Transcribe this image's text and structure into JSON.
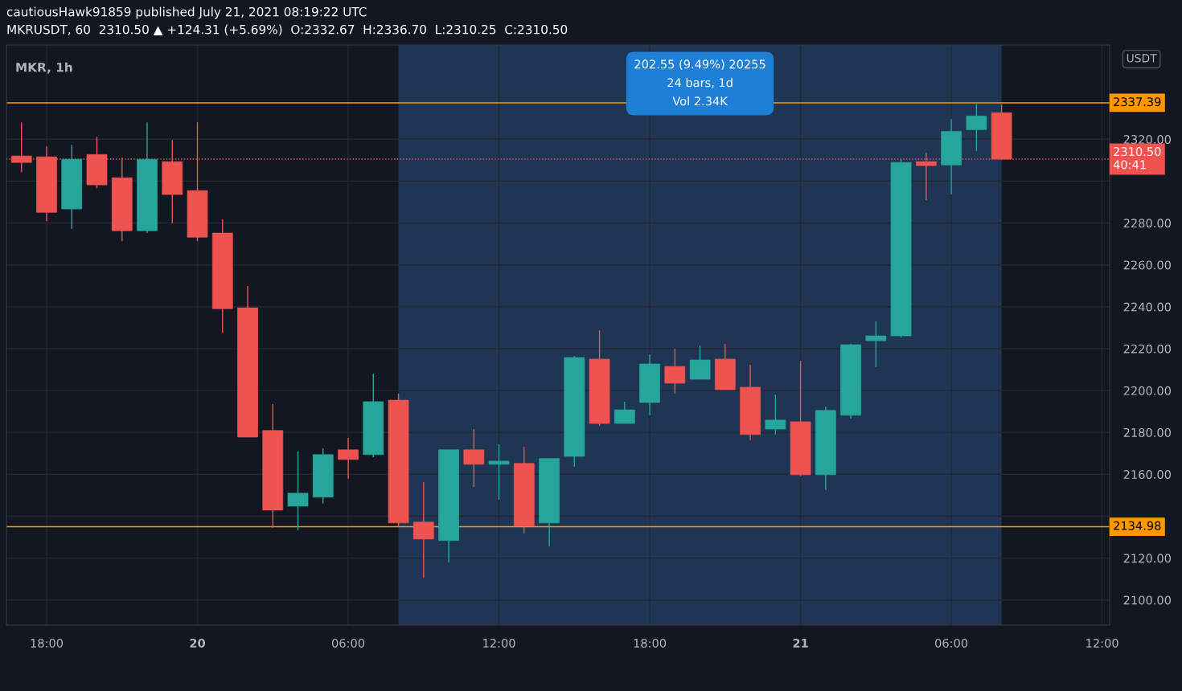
{
  "chart_data": {
    "type": "candlestick",
    "title": "MKRUSDT, 60  2310.50 ▲ +124.31 (+5.69%)  O:2332.67  H:2336.70  L:2310.25  C:2310.50",
    "subtitle": "MKR, 1h",
    "ylabel": "USDT",
    "x": [
      "2021-07-19T17:00",
      "2021-07-19T18:00",
      "2021-07-19T19:00",
      "2021-07-19T20:00",
      "2021-07-19T21:00",
      "2021-07-19T22:00",
      "2021-07-19T23:00",
      "2021-07-20T00:00",
      "2021-07-20T01:00",
      "2021-07-20T02:00",
      "2021-07-20T03:00",
      "2021-07-20T04:00",
      "2021-07-20T05:00",
      "2021-07-20T06:00",
      "2021-07-20T07:00",
      "2021-07-20T08:00",
      "2021-07-20T09:00",
      "2021-07-20T10:00",
      "2021-07-20T11:00",
      "2021-07-20T12:00",
      "2021-07-20T13:00",
      "2021-07-20T14:00",
      "2021-07-20T15:00",
      "2021-07-20T16:00",
      "2021-07-20T17:00",
      "2021-07-20T18:00",
      "2021-07-20T19:00",
      "2021-07-20T20:00",
      "2021-07-20T21:00",
      "2021-07-20T22:00",
      "2021-07-20T23:00",
      "2021-07-21T00:00",
      "2021-07-21T01:00",
      "2021-07-21T02:00",
      "2021-07-21T03:00",
      "2021-07-21T04:00",
      "2021-07-21T05:00",
      "2021-07-21T06:00",
      "2021-07-21T07:00",
      "2021-07-21T08:00"
    ],
    "ohlc": [
      [
        2312.0,
        2328.1,
        2304.3,
        2308.9
      ],
      [
        2311.6,
        2316.6,
        2280.9,
        2285.1
      ],
      [
        2286.7,
        2317.3,
        2277.1,
        2310.4
      ],
      [
        2312.7,
        2321.2,
        2296.6,
        2298.2
      ],
      [
        2301.6,
        2311.2,
        2271.3,
        2276.3
      ],
      [
        2276.3,
        2328.1,
        2275.2,
        2310.4
      ],
      [
        2309.3,
        2319.6,
        2279.8,
        2293.6
      ],
      [
        2295.5,
        2328.1,
        2271.3,
        2273.2
      ],
      [
        2275.2,
        2281.7,
        2227.6,
        2239.1
      ],
      [
        2239.5,
        2249.9,
        2177.8,
        2177.8
      ],
      [
        2180.9,
        2193.5,
        2134.5,
        2142.9
      ],
      [
        2144.8,
        2170.9,
        2133.3,
        2151.0
      ],
      [
        2149.1,
        2172.4,
        2146.0,
        2169.4
      ],
      [
        2171.7,
        2177.4,
        2157.9,
        2167.1
      ],
      [
        2169.4,
        2208.1,
        2168.2,
        2194.7
      ],
      [
        2195.4,
        2198.5,
        2134.9,
        2136.8
      ],
      [
        2137.2,
        2156.3,
        2110.7,
        2129.1
      ],
      [
        2128.4,
        2171.7,
        2118.0,
        2171.7
      ],
      [
        2171.7,
        2181.6,
        2154.0,
        2164.8
      ],
      [
        2164.8,
        2174.4,
        2147.9,
        2166.3
      ],
      [
        2165.2,
        2173.2,
        2131.8,
        2135.3
      ],
      [
        2136.8,
        2167.5,
        2125.7,
        2167.5
      ],
      [
        2168.6,
        2216.5,
        2163.6,
        2215.8
      ],
      [
        2215.0,
        2228.8,
        2183.2,
        2184.3
      ],
      [
        2184.3,
        2194.7,
        2184.3,
        2190.8
      ],
      [
        2194.3,
        2217.3,
        2188.2,
        2212.7
      ],
      [
        2211.5,
        2220.0,
        2198.5,
        2203.5
      ],
      [
        2205.4,
        2221.5,
        2205.4,
        2214.6
      ],
      [
        2215.0,
        2222.3,
        2200.4,
        2200.4
      ],
      [
        2201.6,
        2212.3,
        2176.3,
        2179.0
      ],
      [
        2181.6,
        2198.1,
        2179.0,
        2185.9
      ],
      [
        2185.1,
        2214.2,
        2159.0,
        2159.8
      ],
      [
        2159.8,
        2192.4,
        2152.5,
        2190.5
      ],
      [
        2188.2,
        2222.3,
        2186.6,
        2221.9
      ],
      [
        2223.8,
        2233.0,
        2211.2,
        2226.1
      ],
      [
        2226.1,
        2310.4,
        2225.3,
        2308.9
      ],
      [
        2309.3,
        2313.5,
        2290.9,
        2307.4
      ],
      [
        2307.7,
        2329.6,
        2293.6,
        2323.8
      ],
      [
        2324.6,
        2336.9,
        2314.3,
        2331.1
      ],
      [
        2332.67,
        2336.7,
        2310.25,
        2310.5
      ]
    ],
    "colors": [
      "#ef5350",
      "#ef5350",
      "#26a69a",
      "#ef5350",
      "#ef5350",
      "#26a69a",
      "#ef5350",
      "#ef5350",
      "#ef5350",
      "#ef5350",
      "#ef5350",
      "#26a69a",
      "#26a69a",
      "#ef5350",
      "#26a69a",
      "#ef5350",
      "#ef5350",
      "#26a69a",
      "#ef5350",
      "#26a69a",
      "#ef5350",
      "#26a69a",
      "#26a69a",
      "#ef5350",
      "#26a69a",
      "#26a69a",
      "#ef5350",
      "#26a69a",
      "#ef5350",
      "#ef5350",
      "#26a69a",
      "#ef5350",
      "#26a69a",
      "#26a69a",
      "#26a69a",
      "#26a69a",
      "#ef5350",
      "#26a69a",
      "#26a69a",
      "#ef5350"
    ],
    "xlim": [
      "2021-07-19T16:24",
      "2021-07-21T12:18"
    ],
    "xticks": [
      {
        "value": "2021-07-19T18:00",
        "label": "18:00"
      },
      {
        "value": "2021-07-20T00:00",
        "label": "20"
      },
      {
        "value": "2021-07-20T06:00",
        "label": "06:00"
      },
      {
        "value": "2021-07-20T12:00",
        "label": "12:00"
      },
      {
        "value": "2021-07-20T18:00",
        "label": "18:00"
      },
      {
        "value": "2021-07-21T00:00",
        "label": "21"
      },
      {
        "value": "2021-07-21T06:00",
        "label": "06:00"
      },
      {
        "value": "2021-07-21T12:00",
        "label": "12:00"
      }
    ],
    "ylim": [
      2088,
      2365
    ],
    "yticks": [
      {
        "value": 2100,
        "label": "2100.00"
      },
      {
        "value": 2120,
        "label": "2120.00"
      },
      {
        "value": 2140,
        "label": null
      },
      {
        "value": 2160,
        "label": "2160.00"
      },
      {
        "value": 2180,
        "label": "2180.00"
      },
      {
        "value": 2200,
        "label": "2200.00"
      },
      {
        "value": 2220,
        "label": "2220.00"
      },
      {
        "value": 2240,
        "label": "2240.00"
      },
      {
        "value": 2260,
        "label": "2260.00"
      },
      {
        "value": 2280,
        "label": "2280.00"
      },
      {
        "value": 2300,
        "label": null
      },
      {
        "value": 2320,
        "label": "2320.00"
      }
    ],
    "grid": true,
    "ref_lines": [
      {
        "axis": "y",
        "value": 2337.39,
        "label": "2337.39",
        "color": "#ff9800",
        "line_style": "solid"
      },
      {
        "axis": "y",
        "value": 2134.98,
        "label": "2134.98",
        "color": "#ff9800",
        "line_style": "solid"
      },
      {
        "axis": "y",
        "value": 2310.5,
        "label": "2310.50\n40:41",
        "color": "#ef5350",
        "line_style": "dotted"
      }
    ],
    "bands": [
      {
        "axis": "x",
        "from": "2021-07-20T08:00",
        "to": "2021-07-21T08:00",
        "color": "#1e3553"
      }
    ],
    "annotations": [
      "cautiousHawk91859 published July 21, 2021 08:19:22 UTC",
      "202.55 (9.49%) 20255\n24 bars, 1d\nVol 2.34K"
    ]
  }
}
